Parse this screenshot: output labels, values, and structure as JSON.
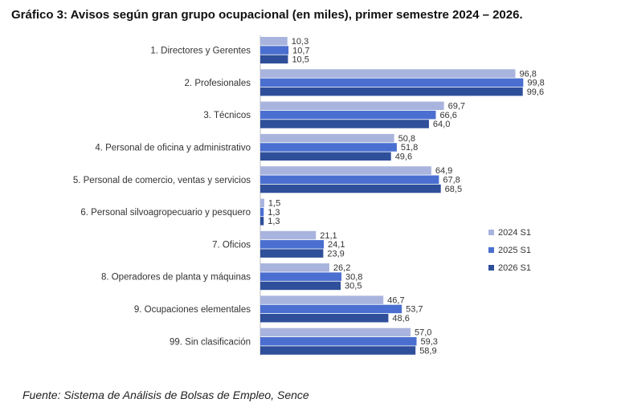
{
  "title": "Gráfico 3: Avisos según gran grupo ocupacional (en miles), primer semestre 2024 – 2026.",
  "source": "Fuente: Sistema de Análisis de Bolsas de Empleo, Sence",
  "chart_data": {
    "type": "bar",
    "orientation": "horizontal",
    "title": "Gráfico 3: Avisos según gran grupo ocupacional (en miles), primer semestre 2024 – 2026.",
    "xlabel": "",
    "ylabel": "",
    "xlim": [
      0,
      100
    ],
    "grid": false,
    "legend_position": "right",
    "categories": [
      "1. Directores y Gerentes",
      "2. Profesionales",
      "3. Técnicos",
      "4. Personal de oficina y administrativo",
      "5. Personal de comercio, ventas y servicios",
      "6. Personal silvoagropecuario y pesquero",
      "7. Oficios",
      "8. Operadores de planta y máquinas",
      "9. Ocupaciones elementales",
      "99. Sin clasificación"
    ],
    "series": [
      {
        "name": "2024 S1",
        "color": "#a9b4de",
        "values": [
          10.3,
          96.8,
          69.7,
          50.8,
          64.9,
          1.5,
          21.1,
          26.2,
          46.7,
          57.0
        ],
        "labels": [
          "10,3",
          "96,8",
          "69,7",
          "50,8",
          "64,9",
          "1,5",
          "21,1",
          "26,2",
          "46,7",
          "57,0"
        ]
      },
      {
        "name": "2025 S1",
        "color": "#4a6fd0",
        "values": [
          10.7,
          99.8,
          66.6,
          51.8,
          67.8,
          1.3,
          24.1,
          30.8,
          53.7,
          59.3
        ],
        "labels": [
          "10,7",
          "99,8",
          "66,6",
          "51,8",
          "67,8",
          "1,3",
          "24,1",
          "30,8",
          "53,7",
          "59,3"
        ]
      },
      {
        "name": "2026 S1",
        "color": "#2f4f9a",
        "values": [
          10.5,
          99.6,
          64.0,
          49.6,
          68.5,
          1.3,
          23.9,
          30.5,
          48.6,
          58.9
        ],
        "labels": [
          "10,5",
          "99,6",
          "64,0",
          "49,6",
          "68,5",
          "1,3",
          "23,9",
          "30,5",
          "48,6",
          "58,9"
        ]
      }
    ]
  }
}
